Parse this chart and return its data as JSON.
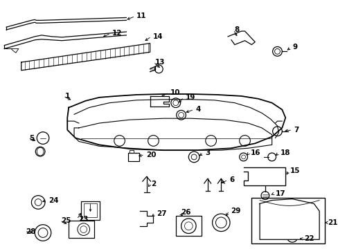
{
  "bg_color": "#ffffff",
  "fig_width": 4.89,
  "fig_height": 3.6,
  "dpi": 100,
  "line_color": "#000000",
  "text_color": "#000000",
  "fs": 7.5,
  "fw": "bold"
}
